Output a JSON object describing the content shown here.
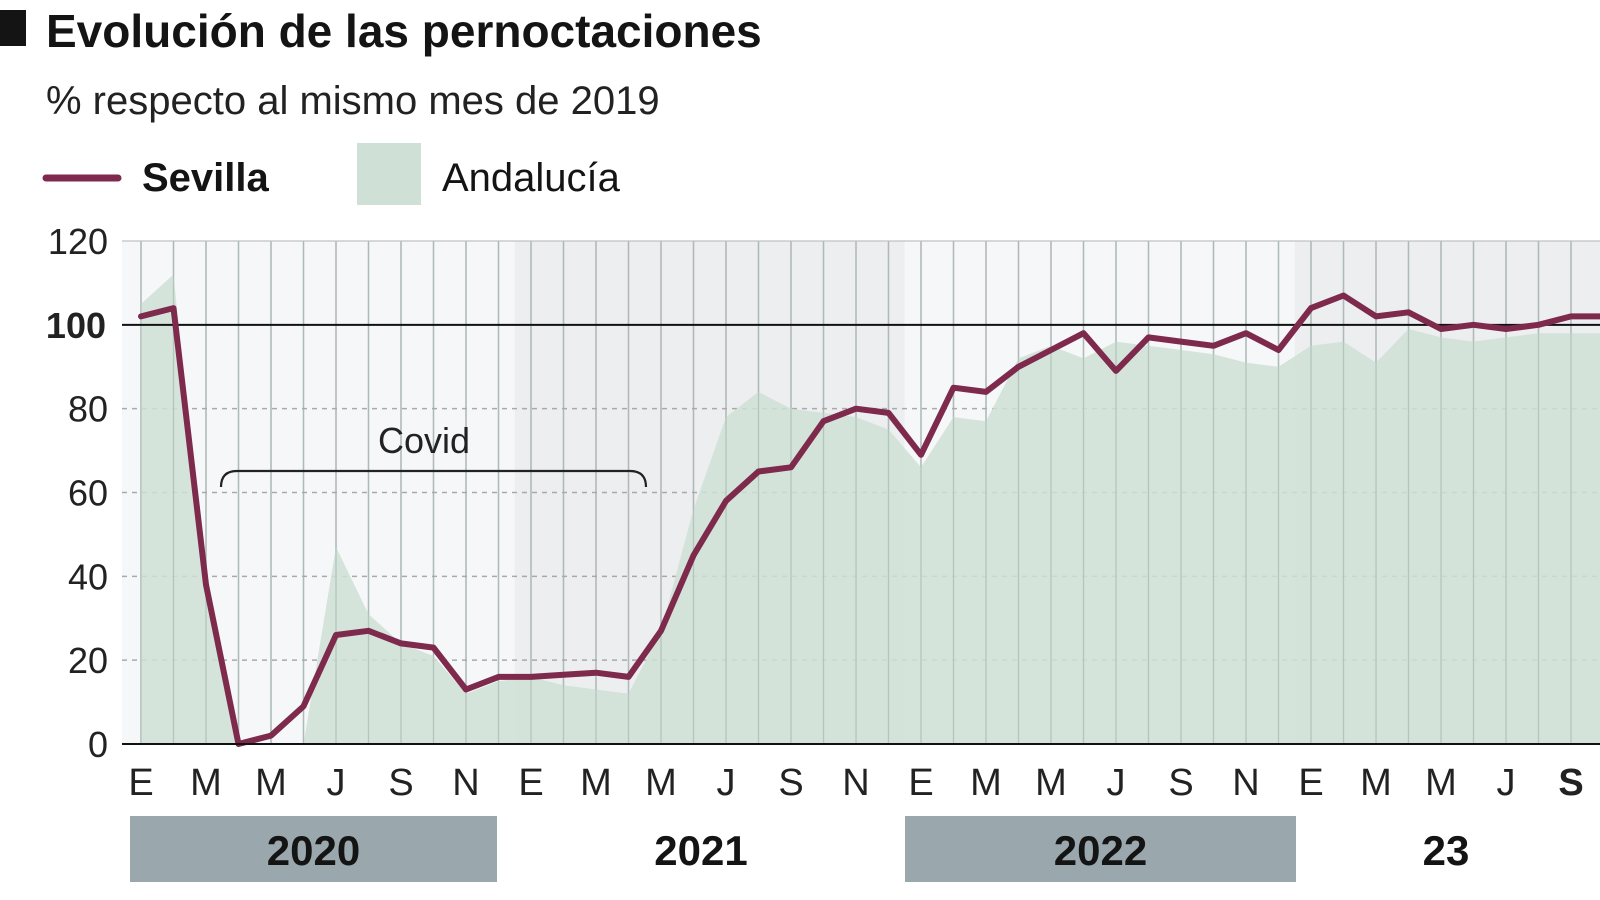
{
  "header": {
    "title": "Evolución de las pernoctaciones",
    "subtitle": "% respecto al mismo mes de 2019"
  },
  "legend": {
    "sevilla_label": "Sevilla",
    "andalucia_label": "Andalucía"
  },
  "annotation": {
    "covid_label": "Covid"
  },
  "colors": {
    "sevilla_line": "#7d2a4c",
    "andalucia_area": "#cfe0d6",
    "year_band": "#9aa8ad",
    "stripe_light": "#f6f7f8",
    "stripe_dark": "#eceef0",
    "grid_vertical": "#bfc4c7",
    "title_text": "#141414"
  },
  "chart_data": {
    "type": "line",
    "title": "Evolución de las pernoctaciones",
    "subtitle": "% respecto al mismo mes de 2019",
    "ylim": [
      0,
      120
    ],
    "y_ticks": [
      "0",
      "20",
      "40",
      "60",
      "80",
      "100",
      "120"
    ],
    "reference_line": 100,
    "x_tick_labels": [
      "E",
      "M",
      "M",
      "J",
      "S",
      "N",
      "E",
      "M",
      "M",
      "J",
      "S",
      "N",
      "E",
      "M",
      "M",
      "J",
      "S",
      "N",
      "E",
      "M",
      "M",
      "J",
      "S"
    ],
    "years": [
      "2020",
      "2021",
      "2022",
      "23"
    ],
    "categories": [
      "2020-01",
      "2020-02",
      "2020-03",
      "2020-04",
      "2020-05",
      "2020-06",
      "2020-07",
      "2020-08",
      "2020-09",
      "2020-10",
      "2020-11",
      "2020-12",
      "2021-01",
      "2021-02",
      "2021-03",
      "2021-04",
      "2021-05",
      "2021-06",
      "2021-07",
      "2021-08",
      "2021-09",
      "2021-10",
      "2021-11",
      "2021-12",
      "2022-01",
      "2022-02",
      "2022-03",
      "2022-04",
      "2022-05",
      "2022-06",
      "2022-07",
      "2022-08",
      "2022-09",
      "2022-10",
      "2022-11",
      "2022-12",
      "2023-01",
      "2023-02",
      "2023-03",
      "2023-04",
      "2023-05",
      "2023-06",
      "2023-07",
      "2023-08",
      "2023-09"
    ],
    "series": [
      {
        "name": "Sevilla",
        "type": "line",
        "values": [
          102,
          104,
          38,
          0,
          2,
          9,
          26,
          27,
          24,
          23,
          13,
          16,
          16,
          16.5,
          17,
          16,
          27,
          45,
          58,
          65,
          66,
          77,
          80,
          79,
          69,
          85,
          84,
          90,
          94,
          98,
          89,
          97,
          96,
          95,
          98,
          94,
          104,
          107,
          102,
          103,
          99,
          100,
          99,
          100,
          102
        ]
      },
      {
        "name": "Andalucía",
        "type": "area",
        "values": [
          105,
          112,
          35,
          0,
          0,
          0,
          47,
          31,
          24,
          21,
          12,
          15,
          16,
          14,
          13,
          12,
          27,
          56,
          78,
          84,
          80,
          79,
          78,
          75,
          66,
          78,
          77,
          92,
          95,
          92,
          96,
          95,
          94,
          93,
          91,
          90,
          95,
          96,
          91,
          99,
          97,
          96,
          97,
          98,
          98
        ]
      }
    ],
    "annotations": [
      {
        "text": "Covid",
        "from": "2020-03",
        "to": "2021-03"
      }
    ]
  }
}
